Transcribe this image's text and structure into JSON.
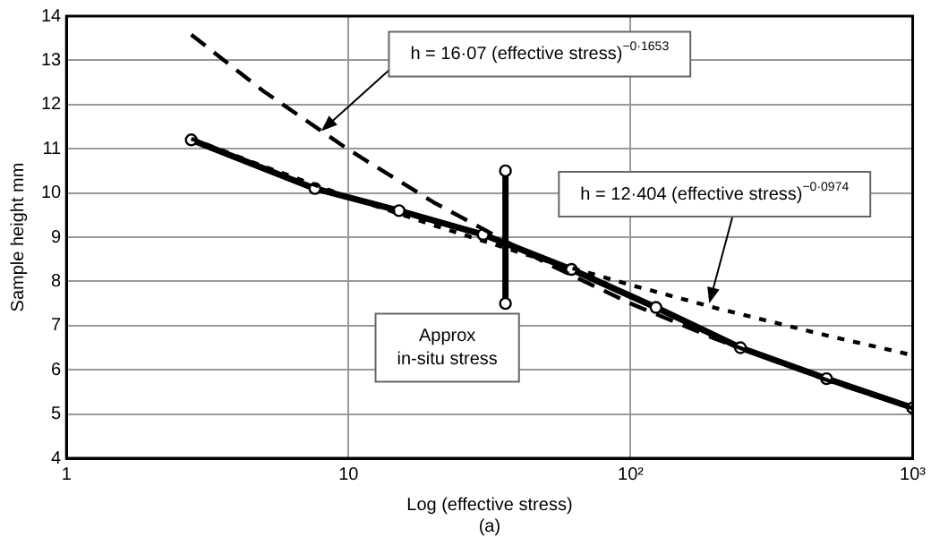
{
  "chart_data": {
    "type": "line",
    "xlabel": "Log (effective stress)",
    "ylabel": "Sample height mm",
    "xlim": [
      1,
      1000
    ],
    "xticks": [
      1,
      10,
      {
        "value": 100,
        "label": "10²"
      },
      {
        "value": 1000,
        "label": "10³"
      }
    ],
    "ylim": [
      4,
      14
    ],
    "yticks": [
      4,
      5,
      6,
      7,
      8,
      9,
      10,
      11,
      12,
      13,
      14
    ],
    "log": "x",
    "grid": true,
    "legend": false,
    "series": [
      {
        "color": "#000000",
        "x": [
          2.77,
          5,
          10,
          20,
          50,
          100,
          200,
          500,
          1000
        ],
        "values": [
          13.58,
          12.3,
          10.98,
          9.79,
          8.42,
          7.5,
          6.7,
          5.76,
          5.13
        ],
        "marker": "none",
        "line_style": "dashed"
      },
      {
        "color": "#000000",
        "x": [
          2.77,
          5,
          10,
          20,
          50,
          100,
          200,
          500,
          1000
        ],
        "values": [
          11.23,
          10.6,
          9.91,
          9.27,
          8.47,
          7.92,
          7.4,
          6.77,
          6.33
        ],
        "marker": "none",
        "line_style": "dotted"
      },
      {
        "color": "#000000",
        "x": [
          2.77,
          7.6,
          15.1,
          30,
          61.7,
          123,
          245,
          495,
          1000
        ],
        "values": [
          11.2,
          10.1,
          9.6,
          9.06,
          8.27,
          7.41,
          6.5,
          5.8,
          5.14
        ],
        "marker": "circle",
        "line_style": "solid"
      },
      {
        "color": "#000000",
        "x": [
          36,
          36
        ],
        "values": [
          7.5,
          10.5
        ],
        "marker": "circle",
        "line_style": "solid"
      }
    ],
    "annotations": [
      {
        "text": "h = 16·07 (effective stress)$^{−0·1653}$",
        "x": 8,
        "y": 11.4
      },
      {
        "text": "h = 12·404 (effective stress)$^{−0·0974}$",
        "x": 190,
        "y": 7.5
      },
      "Approx in-situ stress",
      "(a)"
    ]
  }
}
